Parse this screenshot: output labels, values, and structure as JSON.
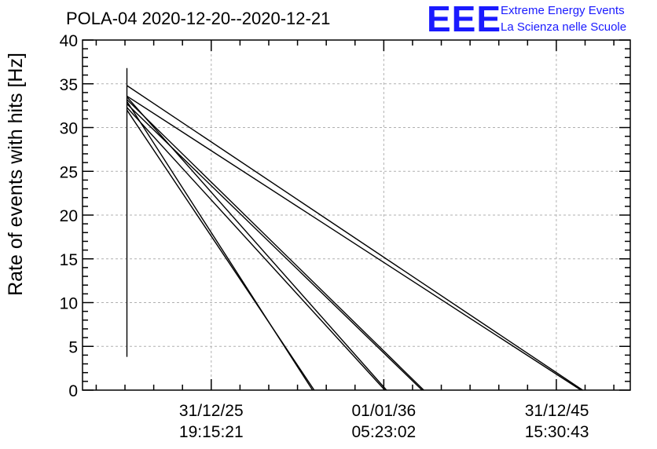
{
  "chart_data": {
    "type": "line",
    "title": "POLA-04 2020-12-20--2020-12-21",
    "ylabel": "Rate of events with hits [Hz]",
    "xlabel": "",
    "ylim": [
      0,
      40
    ],
    "yticks": [
      0,
      5,
      10,
      15,
      20,
      25,
      30,
      35,
      40
    ],
    "xlim": [
      0,
      100
    ],
    "xticks": [
      {
        "x": 23.5,
        "line1": "31/12/25",
        "line2": "19:15:21"
      },
      {
        "x": 55.0,
        "line1": "01/01/36",
        "line2": "05:23:02"
      },
      {
        "x": 86.6,
        "line1": "31/12/45",
        "line2": "15:30:43"
      }
    ],
    "grid": true,
    "series": [
      {
        "values": [
          [
            8.1,
            36.8
          ],
          [
            8.1,
            3.8
          ]
        ]
      },
      {
        "values": [
          [
            8.1,
            34.8
          ],
          [
            91.3,
            0
          ]
        ]
      },
      {
        "values": [
          [
            8.1,
            33.6
          ],
          [
            91.0,
            0
          ]
        ]
      },
      {
        "values": [
          [
            8.1,
            33.2
          ],
          [
            62.3,
            0
          ]
        ]
      },
      {
        "values": [
          [
            8.1,
            32.7
          ],
          [
            62.0,
            0
          ]
        ]
      },
      {
        "values": [
          [
            8.1,
            33.5
          ],
          [
            55.5,
            0
          ]
        ]
      },
      {
        "values": [
          [
            8.1,
            32.3
          ],
          [
            55.2,
            0
          ]
        ]
      },
      {
        "values": [
          [
            8.1,
            32.0
          ],
          [
            42.3,
            0
          ]
        ]
      },
      {
        "values": [
          [
            8.1,
            33.0
          ],
          [
            42.0,
            0
          ]
        ]
      }
    ]
  },
  "logo": {
    "mark": "EEE",
    "line1": "Extreme Energy Events",
    "line2": "La Scienza nelle Scuole",
    "color": "#1a1aff"
  }
}
